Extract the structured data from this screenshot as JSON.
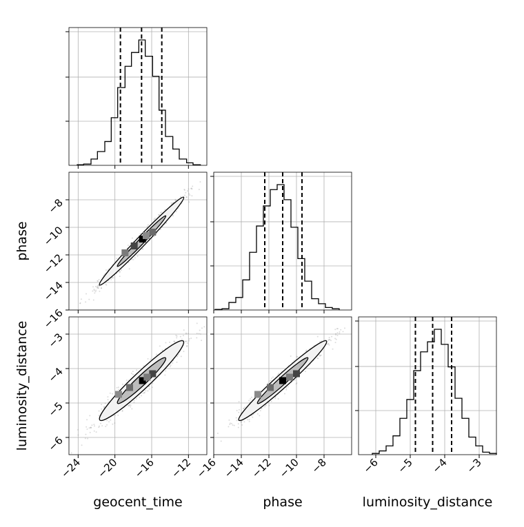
{
  "chart_data": {
    "type": "corner",
    "parameters": [
      "geocent_time",
      "phase",
      "luminosity_distance"
    ],
    "axes": {
      "geocent_time": {
        "label": "geocent_time",
        "range": [
          -25,
          -10
        ],
        "ticks": [
          -24,
          -20,
          -16,
          -12
        ],
        "tick_labels": [
          "−24",
          "−20",
          "−16",
          "−12"
        ]
      },
      "phase": {
        "label": "phase",
        "range": [
          -16,
          -6
        ],
        "ticks": [
          -16,
          -14,
          -12,
          -10,
          -8
        ],
        "tick_labels": [
          "−16",
          "−14",
          "−12",
          "−10",
          "−8"
        ]
      },
      "luminosity_distance": {
        "label": "luminosity_distance",
        "range": [
          -6.5,
          -2.5
        ],
        "ticks": [
          -6,
          -5,
          -4,
          -3
        ],
        "tick_labels": [
          "−6",
          "−5",
          "−4",
          "−3"
        ]
      }
    },
    "grid": true,
    "histograms": {
      "geocent_time": {
        "bins": [
          -24.1,
          -23.4,
          -22.6,
          -21.9,
          -21.1,
          -20.4,
          -19.7,
          -18.9,
          -18.2,
          -17.4,
          -16.7,
          -15.9,
          -15.2,
          -14.5,
          -13.7,
          -13.0,
          -12.2,
          -11.5,
          -10.7
        ],
        "heights": [
          0.005,
          0.01,
          0.05,
          0.11,
          0.19,
          0.38,
          0.62,
          0.79,
          0.9,
          1.0,
          0.87,
          0.71,
          0.44,
          0.23,
          0.13,
          0.05,
          0.02,
          0.005
        ],
        "quantiles": [
          -19.4,
          -17.1,
          -14.9
        ]
      },
      "phase": {
        "bins": [
          -15.9,
          -15.4,
          -14.9,
          -14.4,
          -13.9,
          -13.4,
          -12.9,
          -12.4,
          -11.9,
          -11.4,
          -10.9,
          -10.4,
          -9.9,
          -9.4,
          -8.9,
          -8.4,
          -7.9,
          -7.4,
          -6.9
        ],
        "heights": [
          0.005,
          0.01,
          0.06,
          0.1,
          0.24,
          0.46,
          0.67,
          0.83,
          0.96,
          1.0,
          0.88,
          0.66,
          0.41,
          0.23,
          0.09,
          0.05,
          0.02,
          0.01
        ],
        "quantiles": [
          -12.3,
          -11.0,
          -9.6
        ]
      },
      "luminosity_distance": {
        "bins": [
          -6.1,
          -5.9,
          -5.7,
          -5.5,
          -5.3,
          -5.1,
          -4.9,
          -4.7,
          -4.5,
          -4.3,
          -4.1,
          -3.9,
          -3.7,
          -3.5,
          -3.3,
          -3.1,
          -2.9,
          -2.7,
          -2.5
        ],
        "heights": [
          0.01,
          0.03,
          0.07,
          0.15,
          0.29,
          0.44,
          0.67,
          0.82,
          0.9,
          1.0,
          0.88,
          0.7,
          0.45,
          0.29,
          0.14,
          0.07,
          0.02,
          0.01
        ],
        "quantiles": [
          -4.85,
          -4.35,
          -3.8
        ]
      }
    },
    "pairs": [
      {
        "x": "geocent_time",
        "y": "phase",
        "mean": [
          -17.1,
          -11.0
        ],
        "std": [
          2.3,
          1.6
        ],
        "corr": 0.985,
        "density_blocks": [
          [
            -17.0,
            -10.85
          ],
          [
            -17.9,
            -11.35
          ],
          [
            -15.9,
            -10.35
          ],
          [
            -18.9,
            -11.85
          ],
          [
            -16.6,
            -10.6
          ]
        ]
      },
      {
        "x": "geocent_time",
        "y": "luminosity_distance",
        "mean": [
          -17.1,
          -4.35
        ],
        "std": [
          2.3,
          0.58
        ],
        "corr": 0.95,
        "density_blocks": [
          [
            -17.0,
            -4.35
          ],
          [
            -15.9,
            -4.15
          ],
          [
            -18.4,
            -4.55
          ],
          [
            -16.5,
            -4.25
          ],
          [
            -19.6,
            -4.75
          ]
        ]
      },
      {
        "x": "phase",
        "y": "luminosity_distance",
        "mean": [
          -11.0,
          -4.35
        ],
        "std": [
          1.6,
          0.58
        ],
        "corr": 0.97,
        "density_blocks": [
          [
            -11.0,
            -4.35
          ],
          [
            -10.0,
            -4.15
          ],
          [
            -11.9,
            -4.55
          ],
          [
            -10.5,
            -4.25
          ],
          [
            -12.8,
            -4.75
          ]
        ]
      }
    ]
  }
}
